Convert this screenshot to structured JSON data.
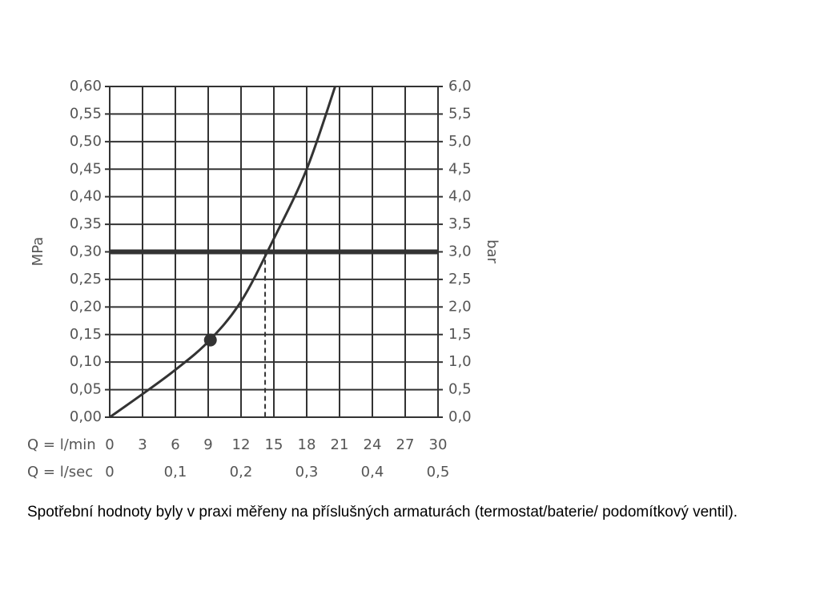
{
  "chart_data": {
    "type": "line",
    "y_label": "MPa",
    "y2_label": "bar",
    "x_label": "Q = l/min",
    "x2_label": "Q = l/sec",
    "x": [
      0,
      3,
      6,
      9,
      12,
      15,
      18,
      20.6
    ],
    "values": [
      0,
      0.042,
      0.086,
      0.137,
      0.21,
      0.324,
      0.45,
      0.6
    ],
    "color": "#333333",
    "marker": {
      "x": 9.2,
      "y": 0.14
    },
    "reference_y": 0.3,
    "reference_x": 14.2,
    "grid": true,
    "xlim": [
      0,
      30
    ],
    "xticks": [
      0,
      3,
      6,
      9,
      12,
      15,
      18,
      21,
      24,
      27,
      30
    ],
    "x2lim": [
      0,
      0.5
    ],
    "x2ticks": [
      0,
      {
        "value": 0.1,
        "label": "0,1"
      },
      {
        "value": 0.2,
        "label": "0,2"
      },
      {
        "value": 0.3,
        "label": "0,3"
      },
      {
        "value": 0.4,
        "label": "0,4"
      },
      {
        "value": 0.5,
        "label": "0,5"
      }
    ],
    "ylim": [
      0,
      0.6
    ],
    "yticks": [
      {
        "value": 0,
        "label": "0,00"
      },
      {
        "value": 0.05,
        "label": "0,05"
      },
      {
        "value": 0.1,
        "label": "0,10"
      },
      {
        "value": 0.15,
        "label": "0,15"
      },
      {
        "value": 0.2,
        "label": "0,20"
      },
      {
        "value": 0.25,
        "label": "0,25"
      },
      {
        "value": 0.3,
        "label": "0,30"
      },
      {
        "value": 0.35,
        "label": "0,35"
      },
      {
        "value": 0.4,
        "label": "0,40"
      },
      {
        "value": 0.45,
        "label": "0,45"
      },
      {
        "value": 0.5,
        "label": "0,50"
      },
      {
        "value": 0.55,
        "label": "0,55"
      },
      {
        "value": 0.6,
        "label": "0,60"
      }
    ],
    "y2lim": [
      0,
      6
    ],
    "y2ticks": [
      {
        "value": 0,
        "label": "0,0"
      },
      {
        "value": 0.5,
        "label": "0,5"
      },
      {
        "value": 1,
        "label": "1,0"
      },
      {
        "value": 1.5,
        "label": "1,5"
      },
      {
        "value": 2,
        "label": "2,0"
      },
      {
        "value": 2.5,
        "label": "2,5"
      },
      {
        "value": 3,
        "label": "3,0"
      },
      {
        "value": 3.5,
        "label": "3,5"
      },
      {
        "value": 4,
        "label": "4,0"
      },
      {
        "value": 4.5,
        "label": "4,5"
      },
      {
        "value": 5,
        "label": "5,0"
      },
      {
        "value": 5.5,
        "label": "5,5"
      },
      {
        "value": 6,
        "label": "6,0"
      }
    ],
    "caption": "Spotřební hodnoty byly v praxi měřeny na příslušných armaturách (termostat/baterie/ podomítkový ventil)."
  }
}
